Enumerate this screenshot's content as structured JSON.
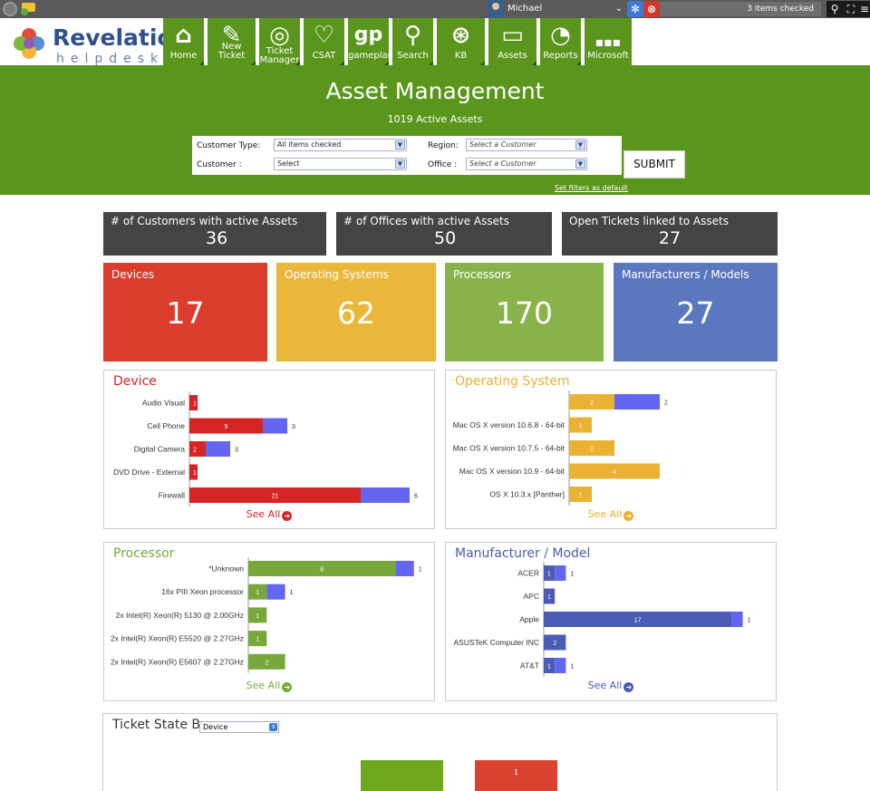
{
  "topbar": {
    "user_name": "Michael",
    "search_value": "3 items checked"
  },
  "logo": {
    "title": "Revelation",
    "subtitle": "helpdesk"
  },
  "nav": [
    {
      "label": "Home",
      "icon": "home-icon"
    },
    {
      "label": "New Ticket",
      "icon": "new-ticket-icon"
    },
    {
      "label": "Ticket Manager",
      "icon": "ticket-manager-icon"
    },
    {
      "label": "CSAT",
      "icon": "heart-star-icon"
    },
    {
      "label": "gameplan",
      "icon": "gameplan-icon"
    },
    {
      "label": "Search",
      "icon": "search-icon"
    },
    {
      "label": "KB",
      "icon": "lifebuoy-icon"
    },
    {
      "label": "Assets",
      "icon": "devices-icon"
    },
    {
      "label": "Reports",
      "icon": "pie-chart-icon"
    },
    {
      "label": "Microsoft",
      "icon": "microsoft-icon"
    }
  ],
  "banner": {
    "title": "Asset Management",
    "subtitle": "1019  Active Assets",
    "customer_type_label": "Customer Type:",
    "customer_type_value": "All items checked",
    "customer_label": "Customer :",
    "customer_value": "Select",
    "region_label": "Region:",
    "region_value": "Select a Customer",
    "office_label": "Office :",
    "office_value": "Select a Customer",
    "submit_label": "SUBMIT",
    "set_default_label": "Set filters as default"
  },
  "stats": [
    {
      "label": "# of Customers with active Assets",
      "value": "36"
    },
    {
      "label": "# of Offices with active Assets",
      "value": "50"
    },
    {
      "label": "Open Tickets linked to Assets",
      "value": "27"
    }
  ],
  "big_tiles": [
    {
      "label": "Devices",
      "value": "17",
      "color": "#dc3c2c"
    },
    {
      "label": "Operating Systems",
      "value": "62",
      "color": "#ebb73a"
    },
    {
      "label": "Processors",
      "value": "170",
      "color": "#89b34a"
    },
    {
      "label": "Manufacturers / Models",
      "value": "27",
      "color": "#5a78bf"
    }
  ],
  "see_all_label": "See All",
  "chart_data": [
    {
      "type": "bar",
      "title": "Device",
      "color": "#d42424",
      "categories": [
        "Audio Visual",
        "Cell Phone",
        "Digital Camera",
        "DVD Drive - External",
        "Firewall"
      ],
      "series": [
        {
          "values": [
            1,
            9,
            2,
            1,
            21
          ]
        },
        {
          "values": [
            0,
            3,
            3,
            0,
            6
          ]
        }
      ]
    },
    {
      "type": "bar",
      "title": "Operating System",
      "color": "#ebb133",
      "categories": [
        "",
        "Mac OS X version 10.6.8 - 64-bit",
        "Mac OS X version 10.7.5 - 64-bit",
        "Mac OS X version 10.9 - 64-bit",
        "OS X 10.3.x [Panther]"
      ],
      "series": [
        {
          "values": [
            2,
            1,
            2,
            4,
            1
          ]
        },
        {
          "values": [
            2,
            0,
            0,
            0,
            0
          ]
        }
      ]
    },
    {
      "type": "bar",
      "title": "Processor",
      "color": "#78a83c",
      "categories": [
        "*Unknown",
        "16x PIII Xeon processor",
        "2x Intel(R) Xeon(R) 5130 @ 2.00GHz",
        "2x Intel(R) Xeon(R) E5520 @ 2.27GHz",
        "2x Intel(R) Xeon(R) E5607 @ 2.27GHz"
      ],
      "series": [
        {
          "values": [
            8,
            1,
            1,
            1,
            2
          ]
        },
        {
          "values": [
            1,
            1,
            0,
            0,
            0
          ]
        }
      ]
    },
    {
      "type": "bar",
      "title": "Manufacturer / Model",
      "color": "#4a5cb3",
      "categories": [
        "ACER",
        "APC",
        "Apple",
        "ASUSTeK Computer INC",
        "AT&T"
      ],
      "series": [
        {
          "values": [
            1,
            1,
            17,
            2,
            1
          ]
        },
        {
          "values": [
            1,
            0,
            1,
            0,
            1
          ]
        }
      ]
    },
    {
      "type": "bar",
      "title": "Ticket State By",
      "series_colors": [
        "#6fa81e",
        "#d9432f"
      ],
      "values": [
        "",
        "1"
      ]
    }
  ],
  "ticket_state": {
    "title": "Ticket State By",
    "select_value": "Device"
  }
}
